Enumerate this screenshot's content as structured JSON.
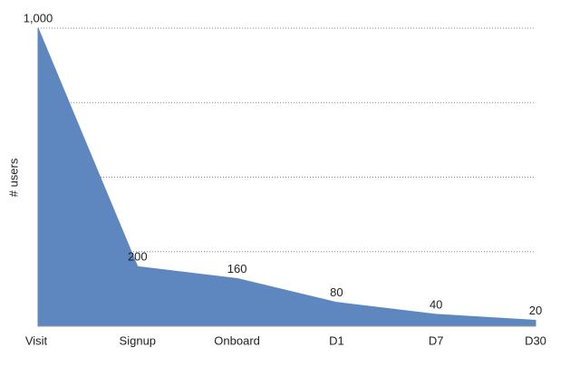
{
  "chart_data": {
    "type": "area",
    "y_label": "# users",
    "categories": [
      "Visit",
      "Signup",
      "Onboard",
      "D1",
      "D7",
      "D30"
    ],
    "values": [
      1000,
      200,
      160,
      80,
      40,
      20
    ],
    "value_labels": [
      "1,000",
      "200",
      "160",
      "80",
      "40",
      "20"
    ],
    "color": "#5f87bf",
    "ylim": [
      0,
      1000
    ],
    "ygrid": [
      250,
      500,
      750,
      1000
    ]
  }
}
